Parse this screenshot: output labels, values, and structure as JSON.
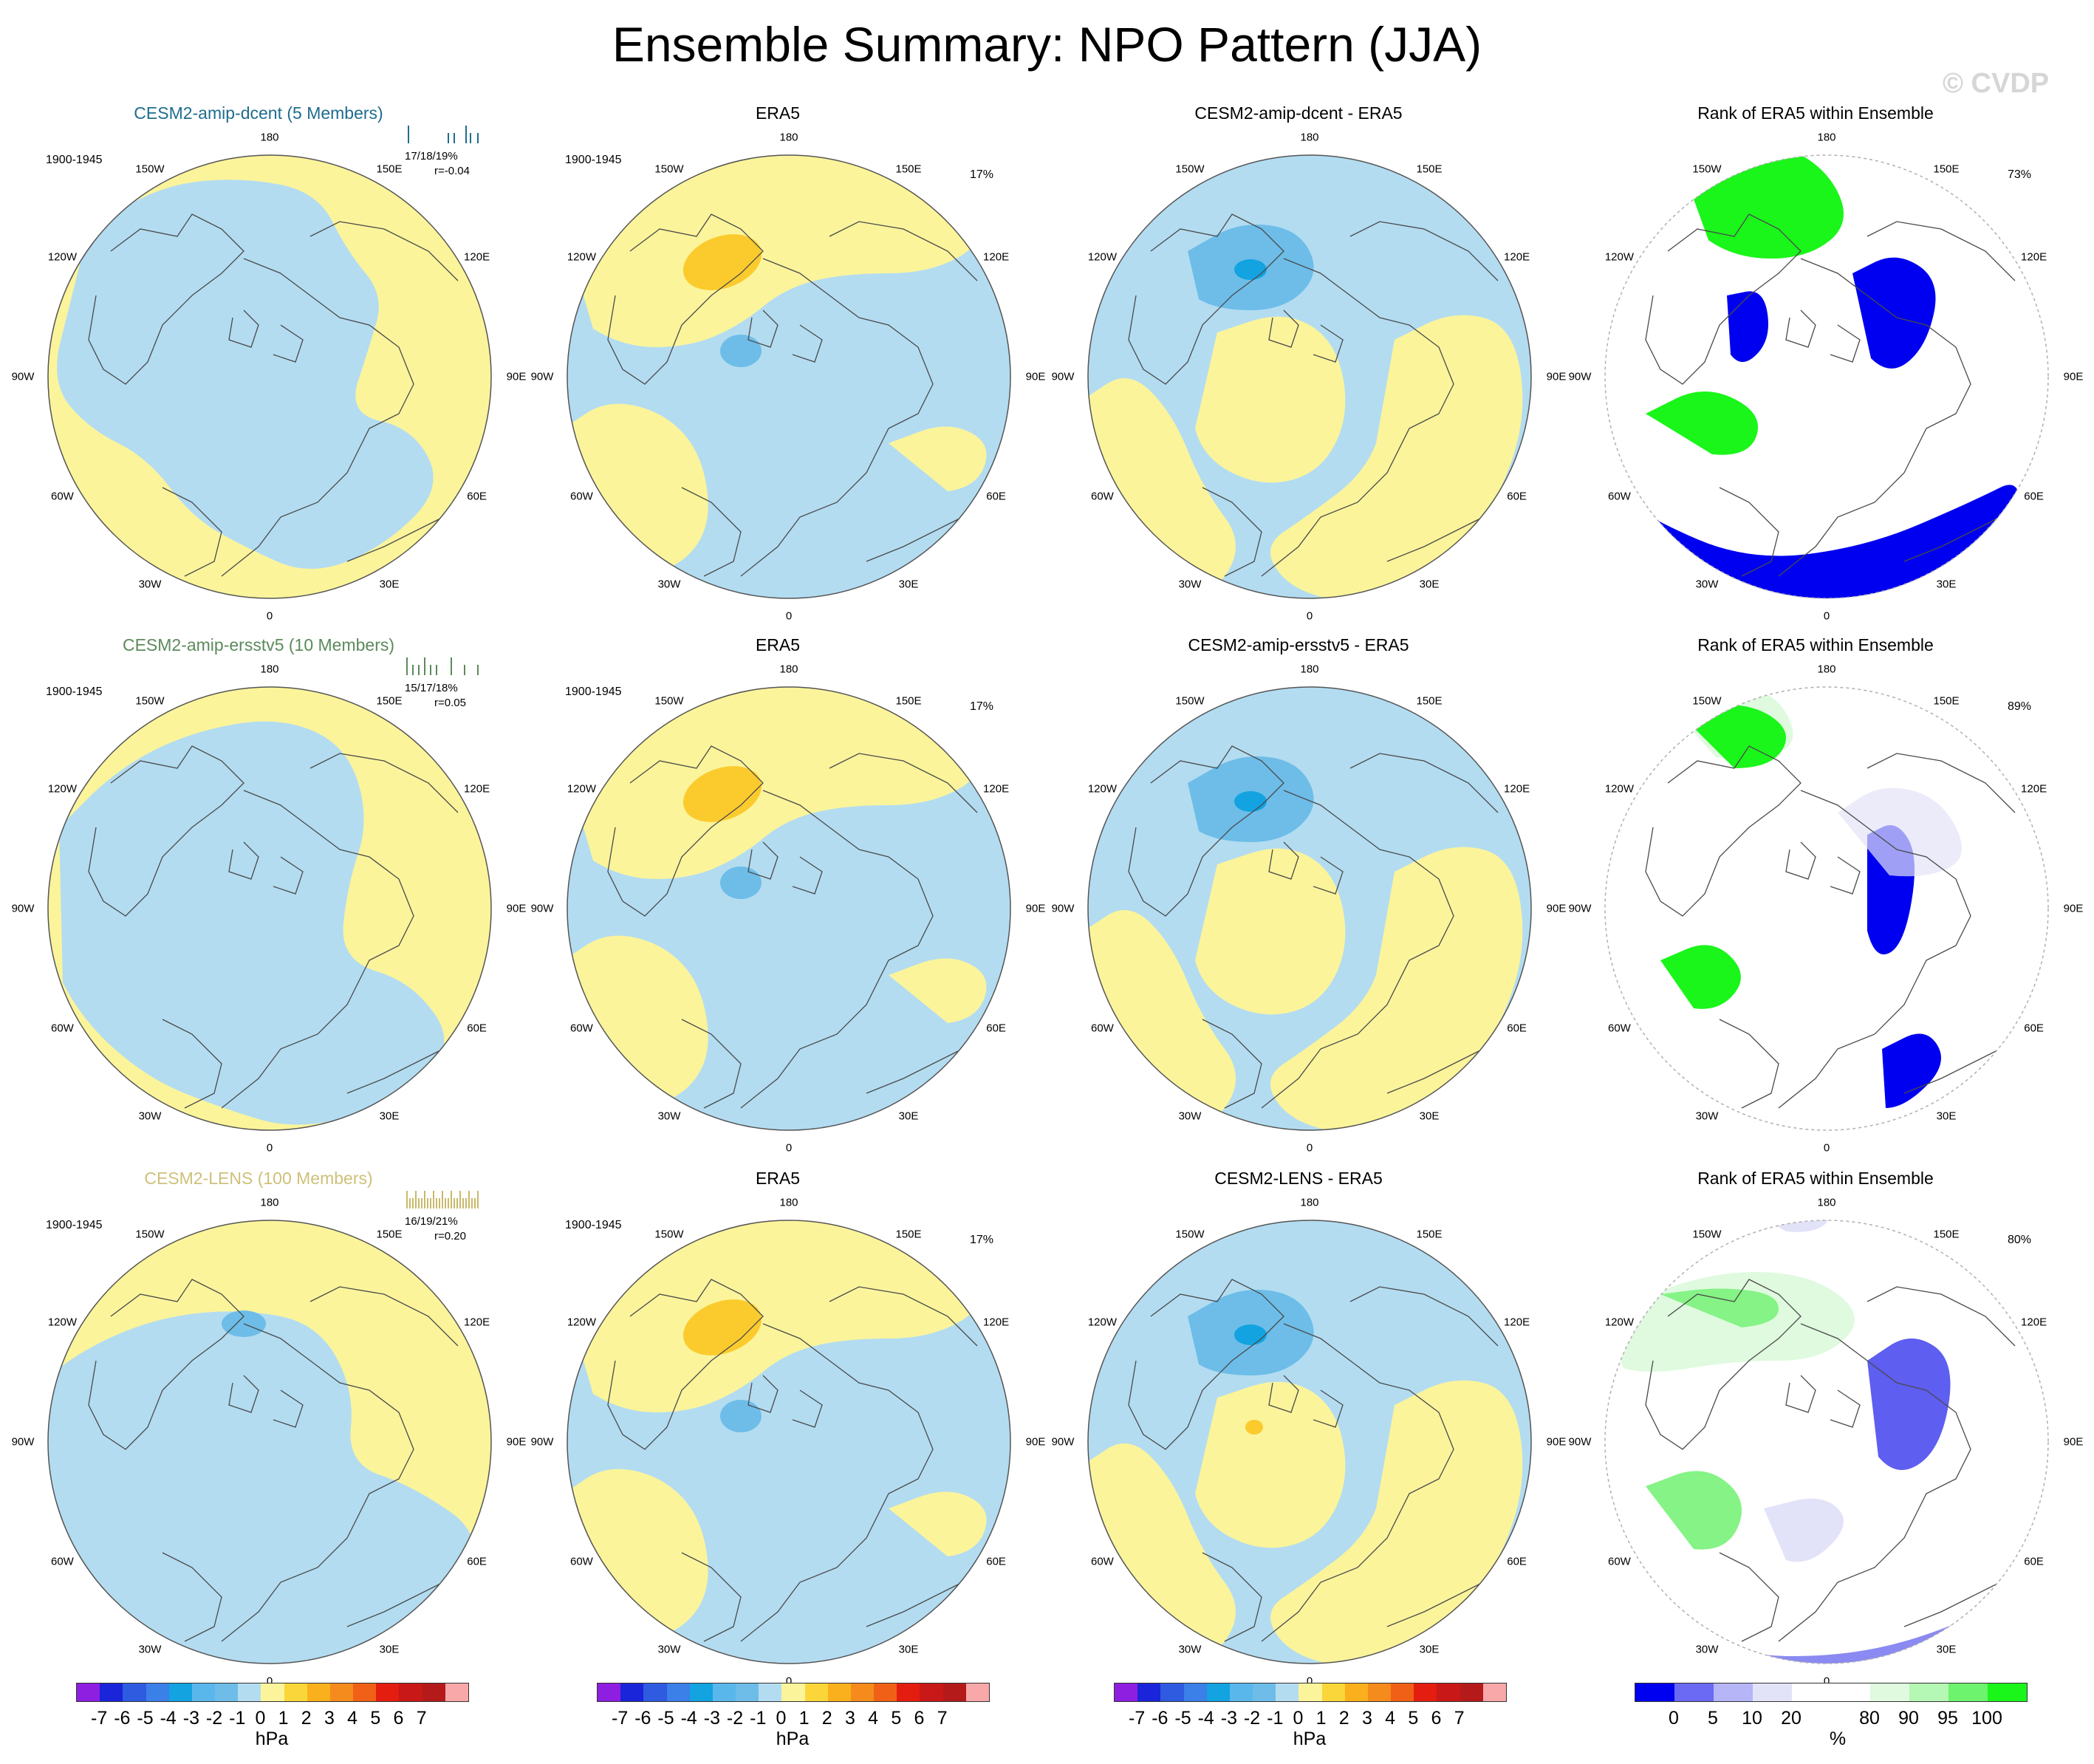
{
  "title": "Ensemble Summary: NPO Pattern (JJA)",
  "watermark": "© CVDP",
  "colors": {
    "yellow": "#fbf49b",
    "blue": "#b3dcf1",
    "mid_blue": "#6dbde8",
    "dark_blue": "#12a3e0",
    "orange": "#fbcb2e",
    "green": "#1af51a",
    "light_green": "#dffadf",
    "rank_blue": "#0000f0",
    "rank_light_blue": "#e2e3f8"
  },
  "lon_labels": [
    "180",
    "150E",
    "120E",
    "90E",
    "60E",
    "30E",
    "0",
    "30W",
    "60W",
    "90W",
    "120W",
    "150W"
  ],
  "rows": [
    {
      "model": {
        "title": "CESM2-amip-dcent (5 Members)",
        "title_color": "#1f6d8e",
        "period": "1900-1945",
        "stats_line1": "17/18/19%",
        "stats_line2": "r=-0.04",
        "tick_color": "#1f6d8e"
      },
      "obs": {
        "title": "ERA5",
        "period": "1900-1945",
        "pct": "17%"
      },
      "diff": {
        "title": "CESM2-amip-dcent - ERA5"
      },
      "rank": {
        "title": "Rank of ERA5 within Ensemble",
        "pct": "73%"
      }
    },
    {
      "model": {
        "title": "CESM2-amip-ersstv5 (10 Members)",
        "title_color": "#5c8a5c",
        "period": "1900-1945",
        "stats_line1": "15/17/18%",
        "stats_line2": "r=0.05",
        "tick_color": "#5c8a5c"
      },
      "obs": {
        "title": "ERA5",
        "period": "1900-1945",
        "pct": "17%"
      },
      "diff": {
        "title": "CESM2-amip-ersstv5 - ERA5"
      },
      "rank": {
        "title": "Rank of ERA5 within Ensemble",
        "pct": "89%"
      }
    },
    {
      "model": {
        "title": "CESM2-LENS (100 Members)",
        "title_color": "#cfc07a",
        "period": "1900-1945",
        "stats_line1": "16/19/21%",
        "stats_line2": "r=0.20",
        "tick_color": "#c9b96a"
      },
      "obs": {
        "title": "ERA5",
        "period": "1900-1945",
        "pct": "17%"
      },
      "diff": {
        "title": "CESM2-LENS - ERA5"
      },
      "rank": {
        "title": "Rank of ERA5 within Ensemble",
        "pct": "80%"
      }
    }
  ],
  "colorbar_hpa": {
    "labels": [
      "-7",
      "-6",
      "-5",
      "-4",
      "-3",
      "-2",
      "-1",
      "0",
      "1",
      "2",
      "3",
      "4",
      "5",
      "6",
      "7"
    ],
    "colors": [
      "#8f1fe0",
      "#1a24d8",
      "#2f5be0",
      "#3b7fe8",
      "#12a3e0",
      "#5ab7ec",
      "#6dbde8",
      "#b3dcf1",
      "#fbf49b",
      "#fbd63a",
      "#f9b01c",
      "#f68b1d",
      "#f06016",
      "#e31d10",
      "#c81818",
      "#b41a1a",
      "#f8a8a8"
    ],
    "unit": "hPa"
  },
  "colorbar_rank": {
    "labels": [
      "0",
      "5",
      "10",
      "20",
      "80",
      "90",
      "95",
      "100"
    ],
    "colors": [
      "#0000f0",
      "#6a6af4",
      "#b5b5f8",
      "#e2e3f8",
      "#ffffff",
      "#ffffff",
      "#dffadf",
      "#b5f7b5",
      "#6df36d",
      "#1af51a"
    ],
    "unit": "%"
  }
}
